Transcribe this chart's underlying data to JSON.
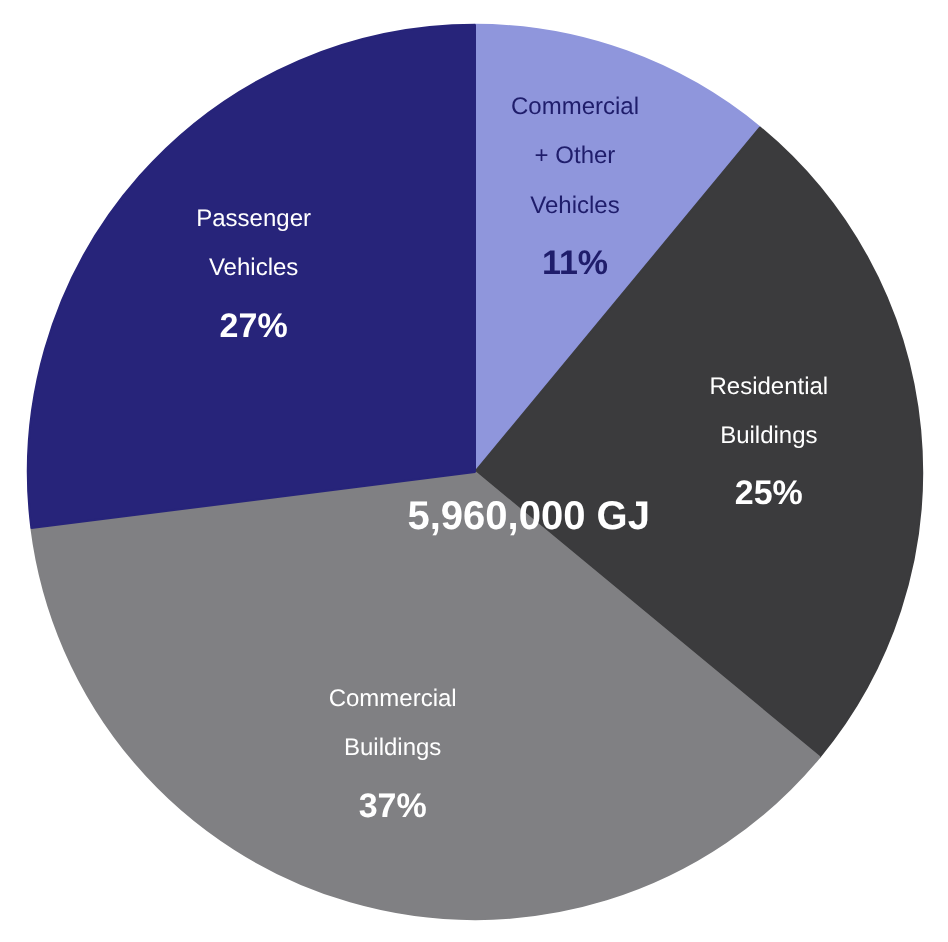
{
  "chart_data": {
    "type": "pie",
    "categories": [
      "Commercial\n+ Other\nVehicles",
      "Residential\nBuildings",
      "Commercial\nBuildings",
      "Passenger\nVehicles"
    ],
    "values": [
      11,
      25,
      37,
      27
    ],
    "colors": [
      "#8f96dc",
      "#3b3b3d",
      "#808083",
      "#27247a"
    ],
    "value_labels": [
      "11%",
      "25%",
      "37%",
      "27%"
    ],
    "annotations": [
      "5,960,000 GJ"
    ]
  }
}
